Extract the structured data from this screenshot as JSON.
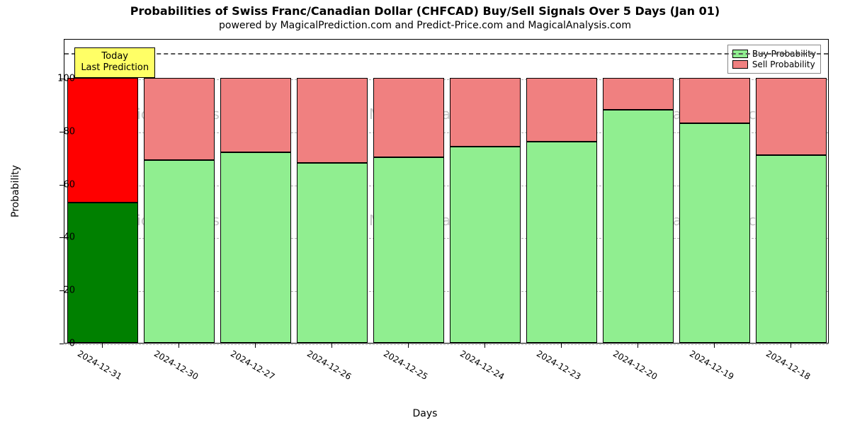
{
  "chart": {
    "type": "stacked-bar",
    "title": "Probabilities of Swiss Franc/Canadian Dollar (CHFCAD) Buy/Sell Signals Over 5 Days (Jan 01)",
    "subtitle": "powered by MagicalPrediction.com and Predict-Price.com and MagicalAnalysis.com",
    "xlabel": "Days",
    "ylabel": "Probability",
    "background_color": "#ffffff",
    "ylim": [
      0,
      115
    ],
    "ytick_step": 20,
    "yticks": [
      0,
      20,
      40,
      60,
      80,
      100
    ],
    "reference_line_y": 110,
    "grid_color": "#b0b0b0",
    "refline_color": "#555555",
    "bar_border_color": "#000000",
    "bar_gap_ratio": 0.08,
    "xtick_rotation_deg": 30,
    "watermark_text": "MagicalAnalysis.com",
    "watermark_color": "#999999",
    "callout": {
      "line1": "Today",
      "line2": "Last Prediction",
      "background": "#ffff66",
      "border_color": "#000000",
      "attach_index": 0
    },
    "legend": {
      "items": [
        {
          "label": "Buy Probability",
          "color": "#90ee90"
        },
        {
          "label": "Sell Probability",
          "color": "#f08080"
        }
      ]
    },
    "series": {
      "categories": [
        "2024-12-31",
        "2024-12-30",
        "2024-12-27",
        "2024-12-26",
        "2024-12-25",
        "2024-12-24",
        "2024-12-23",
        "2024-12-20",
        "2024-12-19",
        "2024-12-18"
      ],
      "buy": [
        53,
        69,
        72,
        68,
        70,
        74,
        76,
        88,
        83,
        71
      ],
      "sell": [
        47,
        31,
        28,
        32,
        30,
        26,
        24,
        12,
        17,
        29
      ],
      "buy_colors": [
        "#008000",
        "#90ee90",
        "#90ee90",
        "#90ee90",
        "#90ee90",
        "#90ee90",
        "#90ee90",
        "#90ee90",
        "#90ee90",
        "#90ee90"
      ],
      "sell_colors": [
        "#ff0000",
        "#f08080",
        "#f08080",
        "#f08080",
        "#f08080",
        "#f08080",
        "#f08080",
        "#f08080",
        "#f08080",
        "#f08080"
      ]
    }
  }
}
